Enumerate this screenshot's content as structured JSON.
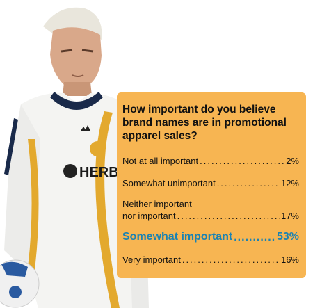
{
  "colors": {
    "panel": "#f7b552",
    "highlight": "#1a82b3",
    "text": "#111111"
  },
  "chart_data": {
    "type": "table",
    "title": "How important do you believe brand names are in promotional apparel sales?",
    "categories": [
      "Not at all important",
      "Somewhat unimportant",
      "Neither important nor important",
      "Somewhat important",
      "Very important"
    ],
    "values": [
      2,
      12,
      17,
      53,
      16
    ],
    "value_labels": [
      "2%",
      "12%",
      "17%",
      "53%",
      "16%"
    ],
    "highlighted_category": "Somewhat important",
    "label_lines": {
      "neither_1": "Neither important",
      "neither_2": "nor important"
    }
  },
  "photo": {
    "shirt_text": "HERBAL",
    "icon": "soccer-player-photo"
  }
}
